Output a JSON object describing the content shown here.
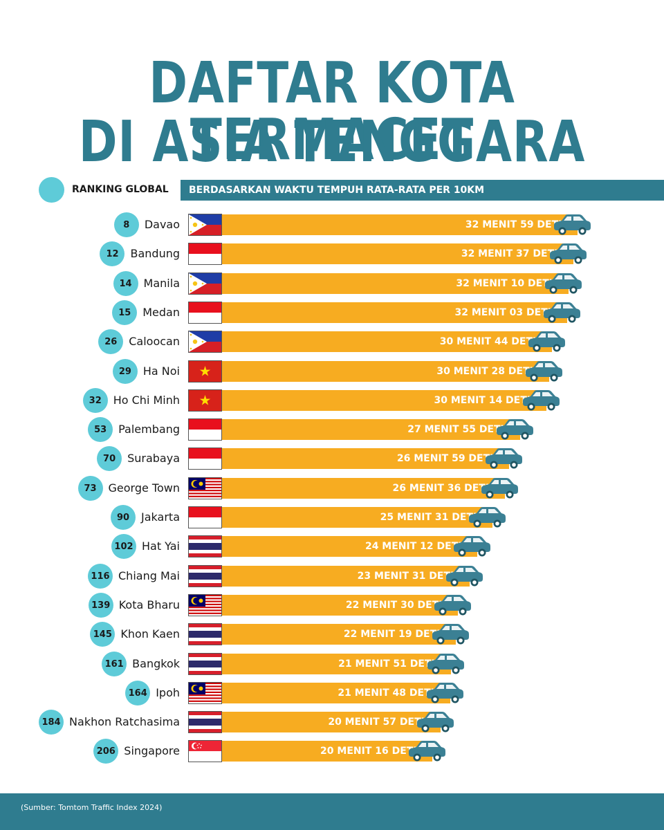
{
  "title": {
    "line1": "DAFTAR KOTA TERMACET",
    "line2": "DI ASIA TENGGARA"
  },
  "legend": {
    "label": "RANKING GLOBAL"
  },
  "header": {
    "text": "BERDASARKAN WAKTU TEMPUH RATA-RATA PER 10KM"
  },
  "colors": {
    "accent": "#2f7c8f",
    "rank_circle": "#5ecbd8",
    "bar": "#f7ac21",
    "car": "#3b8094"
  },
  "chart_data": {
    "type": "bar",
    "orientation": "horizontal",
    "unit": "seconds per 10km",
    "categories": [
      "Davao",
      "Bandung",
      "Manila",
      "Medan",
      "Caloocan",
      "Ha Noi",
      "Ho Chi Minh",
      "Palembang",
      "Surabaya",
      "George Town",
      "Jakarta",
      "Hat Yai",
      "Chiang Mai",
      "Kota Bharu",
      "Khon Kaen",
      "Bangkok",
      "Ipoh",
      "Nakhon Ratchasima",
      "Singapore"
    ],
    "values": [
      1979,
      1957,
      1930,
      1923,
      1844,
      1828,
      1814,
      1675,
      1619,
      1596,
      1531,
      1452,
      1411,
      1350,
      1339,
      1311,
      1308,
      1257,
      1216
    ],
    "rows": [
      {
        "rank": "8",
        "city": "Davao",
        "flag": "philippines",
        "time": "32 MENIT 59 DETIK",
        "seconds": 1979
      },
      {
        "rank": "12",
        "city": "Bandung",
        "flag": "indonesia",
        "time": "32 MENIT 37 DETIK",
        "seconds": 1957
      },
      {
        "rank": "14",
        "city": "Manila",
        "flag": "philippines",
        "time": "32 MENIT 10 DETIK",
        "seconds": 1930
      },
      {
        "rank": "15",
        "city": "Medan",
        "flag": "indonesia",
        "time": "32 MENIT 03 DETIK",
        "seconds": 1923
      },
      {
        "rank": "26",
        "city": "Caloocan",
        "flag": "philippines",
        "time": "30 MENIT 44 DETIK",
        "seconds": 1844
      },
      {
        "rank": "29",
        "city": "Ha Noi",
        "flag": "vietnam",
        "time": "30 MENIT 28 DETIK",
        "seconds": 1828
      },
      {
        "rank": "32",
        "city": "Ho Chi Minh",
        "flag": "vietnam",
        "time": "30 MENIT 14 DETIK",
        "seconds": 1814
      },
      {
        "rank": "53",
        "city": "Palembang",
        "flag": "indonesia",
        "time": "27 MENIT 55 DETIK",
        "seconds": 1675
      },
      {
        "rank": "70",
        "city": "Surabaya",
        "flag": "indonesia",
        "time": "26 MENIT 59 DETIK",
        "seconds": 1619
      },
      {
        "rank": "73",
        "city": "George Town",
        "flag": "malaysia",
        "time": "26 MENIT 36 DETIK",
        "seconds": 1596
      },
      {
        "rank": "90",
        "city": "Jakarta",
        "flag": "indonesia",
        "time": "25 MENIT 31 DETIK",
        "seconds": 1531
      },
      {
        "rank": "102",
        "city": "Hat Yai",
        "flag": "thailand",
        "time": "24 MENIT 12 DETIK",
        "seconds": 1452
      },
      {
        "rank": "116",
        "city": "Chiang Mai",
        "flag": "thailand",
        "time": "23 MENIT 31 DETIK",
        "seconds": 1411
      },
      {
        "rank": "139",
        "city": "Kota Bharu",
        "flag": "malaysia",
        "time": "22 MENIT 30 DETIK",
        "seconds": 1350
      },
      {
        "rank": "145",
        "city": "Khon Kaen",
        "flag": "thailand",
        "time": "22 MENIT 19 DETIK",
        "seconds": 1339
      },
      {
        "rank": "161",
        "city": "Bangkok",
        "flag": "thailand",
        "time": "21 MENIT 51 DETIK",
        "seconds": 1311
      },
      {
        "rank": "164",
        "city": "Ipoh",
        "flag": "malaysia",
        "time": "21 MENIT 48 DETIK",
        "seconds": 1308
      },
      {
        "rank": "184",
        "city": "Nakhon Ratchasima",
        "flag": "thailand",
        "time": "20 MENIT 57 DETIK",
        "seconds": 1257
      },
      {
        "rank": "206",
        "city": "Singapore",
        "flag": "singapore",
        "time": "20 MENIT 16 DETIK",
        "seconds": 1216
      }
    ]
  },
  "footer": {
    "source": "(Sumber: Tomtom Traffic Index 2024)"
  }
}
